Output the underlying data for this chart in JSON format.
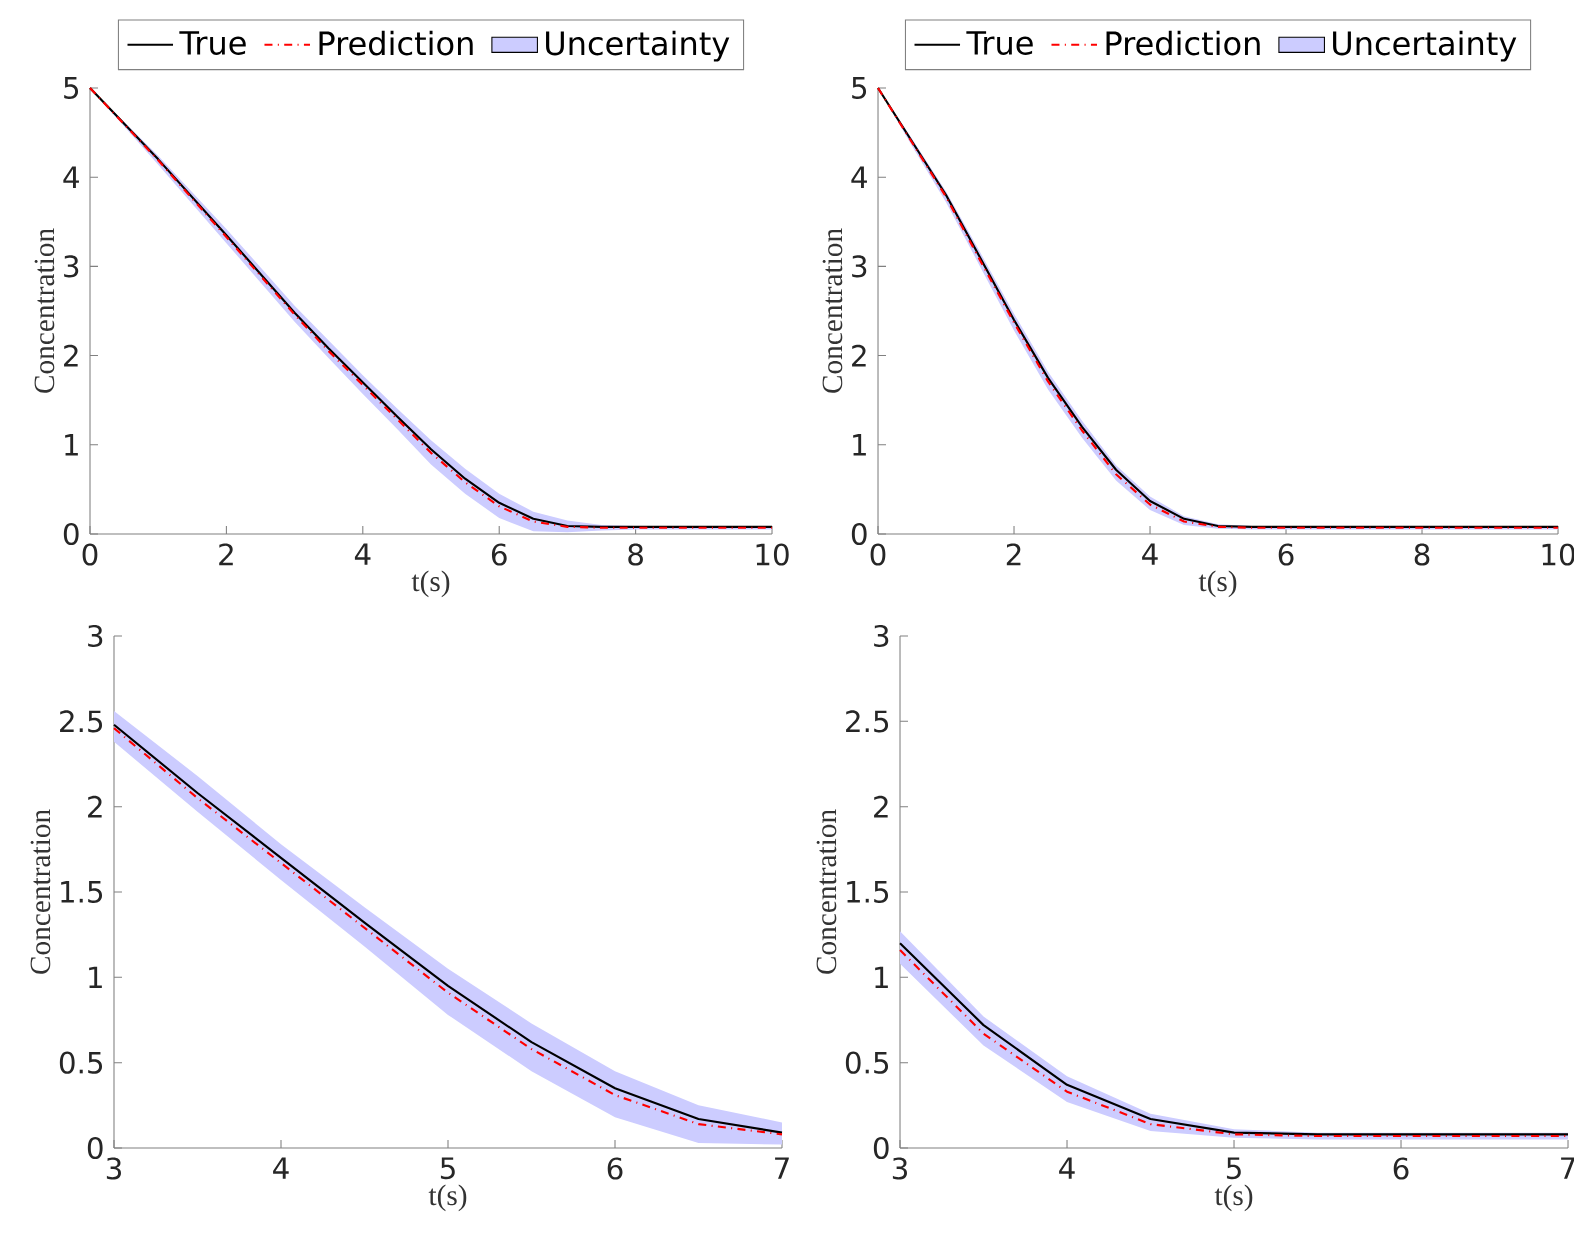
{
  "chart_data": [
    {
      "type": "line",
      "xlabel": "t(s)",
      "ylabel": "Concentration",
      "xlim": [
        0,
        10
      ],
      "ylim": [
        0,
        5
      ],
      "xticks": [
        0,
        2,
        4,
        6,
        8,
        10
      ],
      "yticks": [
        0,
        1,
        2,
        3,
        4,
        5
      ],
      "legend": "top",
      "series": [
        {
          "name": "True",
          "color": "#000000",
          "line_style": "solid",
          "x": [
            0,
            1,
            2,
            3,
            3.5,
            4,
            4.5,
            5,
            5.5,
            6,
            6.5,
            7,
            7.5,
            8,
            10
          ],
          "values": [
            5,
            4.2,
            3.35,
            2.48,
            2.08,
            1.7,
            1.32,
            0.95,
            0.62,
            0.35,
            0.17,
            0.09,
            0.08,
            0.08,
            0.08
          ]
        },
        {
          "name": "Prediction",
          "color": "#ff0000",
          "line_style": "dashed",
          "x": [
            0,
            1,
            2,
            3,
            3.5,
            4,
            4.5,
            5,
            5.5,
            6,
            6.5,
            7,
            7.5,
            8,
            10
          ],
          "values": [
            5,
            4.19,
            3.33,
            2.46,
            2.05,
            1.67,
            1.29,
            0.91,
            0.58,
            0.31,
            0.14,
            0.08,
            0.07,
            0.07,
            0.07
          ],
          "lower": [
            5,
            4.14,
            3.26,
            2.38,
            1.97,
            1.57,
            1.18,
            0.78,
            0.45,
            0.18,
            0.03,
            0.02,
            0.04,
            0.05,
            0.05
          ],
          "upper": [
            5,
            4.24,
            3.42,
            2.56,
            2.17,
            1.78,
            1.41,
            1.05,
            0.73,
            0.45,
            0.25,
            0.15,
            0.1,
            0.09,
            0.09
          ]
        },
        {
          "name": "Uncertainty",
          "type": "area",
          "color": "#ccccff"
        }
      ]
    },
    {
      "type": "line",
      "xlabel": "t(s)",
      "ylabel": "Concentration",
      "xlim": [
        0,
        10
      ],
      "ylim": [
        0,
        5
      ],
      "xticks": [
        0,
        2,
        4,
        6,
        8,
        10
      ],
      "yticks": [
        0,
        1,
        2,
        3,
        4,
        5
      ],
      "legend": "top",
      "series": [
        {
          "name": "True",
          "color": "#000000",
          "line_style": "solid",
          "x": [
            0,
            0.5,
            1,
            1.5,
            2,
            2.5,
            3,
            3.5,
            4,
            4.5,
            5,
            5.5,
            6,
            8,
            10
          ],
          "values": [
            5,
            4.4,
            3.8,
            3.1,
            2.4,
            1.75,
            1.2,
            0.72,
            0.37,
            0.17,
            0.09,
            0.08,
            0.08,
            0.08,
            0.08
          ]
        },
        {
          "name": "Prediction",
          "color": "#ff0000",
          "line_style": "dashed",
          "x": [
            0,
            0.5,
            1,
            1.5,
            2,
            2.5,
            3,
            3.5,
            4,
            4.5,
            5,
            5.5,
            6,
            8,
            10
          ],
          "values": [
            5,
            4.39,
            3.78,
            3.07,
            2.37,
            1.71,
            1.16,
            0.67,
            0.33,
            0.14,
            0.08,
            0.07,
            0.07,
            0.07,
            0.07
          ],
          "lower": [
            5,
            4.35,
            3.72,
            3.0,
            2.28,
            1.62,
            1.08,
            0.6,
            0.27,
            0.1,
            0.06,
            0.05,
            0.05,
            0.05,
            0.05
          ],
          "upper": [
            5,
            4.43,
            3.84,
            3.16,
            2.47,
            1.82,
            1.27,
            0.77,
            0.42,
            0.2,
            0.11,
            0.09,
            0.09,
            0.09,
            0.09
          ]
        },
        {
          "name": "Uncertainty",
          "type": "area",
          "color": "#ccccff"
        }
      ]
    },
    {
      "type": "line",
      "xlabel": "t(s)",
      "ylabel": "Concentration",
      "xlim": [
        3,
        7
      ],
      "ylim": [
        0,
        3
      ],
      "xticks": [
        3,
        4,
        5,
        6,
        7
      ],
      "yticks": [
        0,
        0.5,
        1,
        1.5,
        2,
        2.5,
        3
      ],
      "series": [
        {
          "color": "#000000",
          "line_style": "solid",
          "x": [
            3,
            3.5,
            4,
            4.5,
            5,
            5.5,
            6,
            6.5,
            7
          ],
          "values": [
            2.48,
            2.08,
            1.7,
            1.32,
            0.95,
            0.62,
            0.35,
            0.17,
            0.09
          ]
        },
        {
          "color": "#ff0000",
          "line_style": "dashed",
          "x": [
            3,
            3.5,
            4,
            4.5,
            5,
            5.5,
            6,
            6.5,
            7
          ],
          "values": [
            2.46,
            2.05,
            1.67,
            1.29,
            0.91,
            0.58,
            0.31,
            0.14,
            0.08
          ],
          "lower": [
            2.38,
            1.97,
            1.57,
            1.18,
            0.78,
            0.45,
            0.18,
            0.03,
            0.02
          ],
          "upper": [
            2.56,
            2.18,
            1.78,
            1.41,
            1.05,
            0.73,
            0.45,
            0.25,
            0.15
          ]
        },
        {
          "type": "area",
          "color": "#ccccff"
        }
      ]
    },
    {
      "type": "line",
      "xlabel": "t(s)",
      "ylabel": "Concentration",
      "xlim": [
        3,
        7
      ],
      "ylim": [
        0,
        3
      ],
      "xticks": [
        3,
        4,
        5,
        6,
        7
      ],
      "yticks": [
        0,
        0.5,
        1,
        1.5,
        2,
        2.5,
        3
      ],
      "series": [
        {
          "color": "#000000",
          "line_style": "solid",
          "x": [
            3,
            3.5,
            4,
            4.5,
            5,
            5.5,
            6,
            6.5,
            7
          ],
          "values": [
            1.2,
            0.72,
            0.37,
            0.17,
            0.09,
            0.08,
            0.08,
            0.08,
            0.08
          ]
        },
        {
          "color": "#ff0000",
          "line_style": "dashed",
          "x": [
            3,
            3.5,
            4,
            4.5,
            5,
            5.5,
            6,
            6.5,
            7
          ],
          "values": [
            1.16,
            0.67,
            0.33,
            0.14,
            0.08,
            0.07,
            0.07,
            0.07,
            0.07
          ],
          "lower": [
            1.08,
            0.6,
            0.27,
            0.1,
            0.06,
            0.05,
            0.05,
            0.05,
            0.05
          ],
          "upper": [
            1.27,
            0.77,
            0.42,
            0.2,
            0.11,
            0.09,
            0.09,
            0.09,
            0.09
          ]
        },
        {
          "type": "area",
          "color": "#ccccff"
        }
      ]
    }
  ]
}
